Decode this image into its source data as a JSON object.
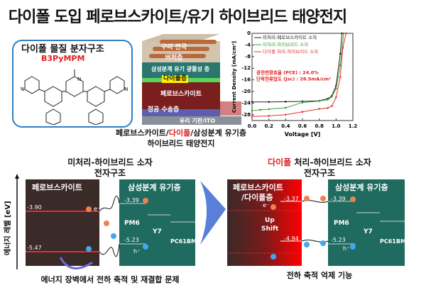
{
  "title": "다이폴 도입 페로브스카이트/유기 하이브리드 태양전지",
  "molecule": {
    "label": "다이폴 물질 분자구조",
    "name": "B3PyMPM",
    "atom": "N"
  },
  "device": {
    "layers": [
      "구리 전극",
      "버퍼층",
      "삼성분계 유기 광활성 층",
      "다이폴층",
      "페로브스카이트",
      "정공 수송층",
      "유리 기판/ITO"
    ],
    "caption_a": "페로브스카이트/",
    "caption_red": "다이폴",
    "caption_b": "/삼성분계  유기층",
    "caption_line2": "하이브리드 태양전지"
  },
  "colors": {
    "accent_red": "#e02020",
    "teal": "#1f6b5f",
    "perovskite": "#3a2a28",
    "blue_arrow": "#2f5fd0"
  },
  "chart_data": {
    "type": "line",
    "xlabel": "Voltage [V]",
    "ylabel": "Current Density [mA/cm²]",
    "xlim": [
      0,
      1.2
    ],
    "ylim": [
      -30,
      0
    ],
    "xticks": [
      "0.0",
      "0.2",
      "0.4",
      "0.6",
      "0.8",
      "1.0",
      "1.2"
    ],
    "yticks": [
      "0",
      "-4",
      "-8",
      "-12",
      "-16",
      "-20",
      "-24",
      "-28"
    ],
    "legend_position": "top-left",
    "series": [
      {
        "name": "미처리-페로브스카이트 소자",
        "color": "#222222",
        "x": [
          0,
          0.2,
          0.4,
          0.6,
          0.8,
          0.9,
          0.95,
          1.0,
          1.05,
          1.07
        ],
        "y": [
          -23.6,
          -23.6,
          -23.5,
          -23.4,
          -23.2,
          -22.5,
          -21.5,
          -18,
          -7,
          0
        ]
      },
      {
        "name": "미처리-하이브리드 소자",
        "color": "#3aa03a",
        "x": [
          0,
          0.1,
          0.2,
          0.4,
          0.6,
          0.8,
          0.9,
          0.95,
          1.0,
          1.05,
          1.09
        ],
        "y": [
          -26.6,
          -26.3,
          -26.1,
          -25.6,
          -23.8,
          -23.3,
          -22.8,
          -21.8,
          -19,
          -11,
          0
        ]
      },
      {
        "name": "다이폴 처리-하이브리드 소자",
        "color": "#e83030",
        "x": [
          0,
          0.2,
          0.4,
          0.6,
          0.8,
          0.9,
          0.95,
          1.0,
          1.05,
          1.08,
          1.12
        ],
        "y": [
          -28.6,
          -28.4,
          -28.0,
          -27.0,
          -26.0,
          -25.7,
          -25.0,
          -22,
          -15,
          -5,
          0
        ]
      }
    ],
    "annotations": [
      "광전변환효율 (PCE) : 24.0%",
      "단락전류밀도 (Jsc) : 28.5mA/cm²"
    ]
  },
  "left_diagram": {
    "title1": "미처리-하이브리드 소자",
    "title2": "전자구조",
    "perovskite": "페로브스카이트",
    "organic": "삼성분계 유기층",
    "levels": [
      "-3.90",
      "-5.47",
      "-3.39",
      "-5.23"
    ],
    "materials": [
      "PM6",
      "Y7",
      "PC61BM"
    ],
    "electron": "e⁻",
    "hole": "h⁺",
    "caption": "에너지 장벽에서 전하 축적 및 재결합 문제"
  },
  "right_diagram": {
    "title_red": "다이폴",
    "title1": " 처리-하이브리드 소자",
    "title2": "전자구조",
    "perovskite1": "페로브스카이트",
    "perovskite2": "/다이폴층",
    "organic": "삼성분계 유기층",
    "levels": [
      "-3.37",
      "-4.94",
      "-3.39",
      "-5.23"
    ],
    "shift1": "Up",
    "shift2": "Shift",
    "materials": [
      "PM6",
      "Y7",
      "PC61BM"
    ],
    "electron": "e⁻",
    "hole": "h⁺",
    "caption": "전하 축적 억제 기능"
  },
  "y_axis_label": "에너지 레벨 [eV]"
}
